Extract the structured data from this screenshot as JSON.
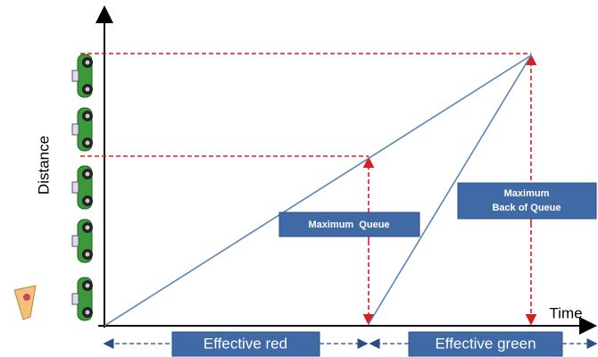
{
  "axes": {
    "y_label": "Distance",
    "x_label": "Time"
  },
  "labels": {
    "max_queue": "Maximum  Queue",
    "max_back_of_queue": [
      "Maximum",
      "Back of Queue"
    ],
    "effective_red": "Effective red",
    "effective_green": "Effective green"
  }
}
